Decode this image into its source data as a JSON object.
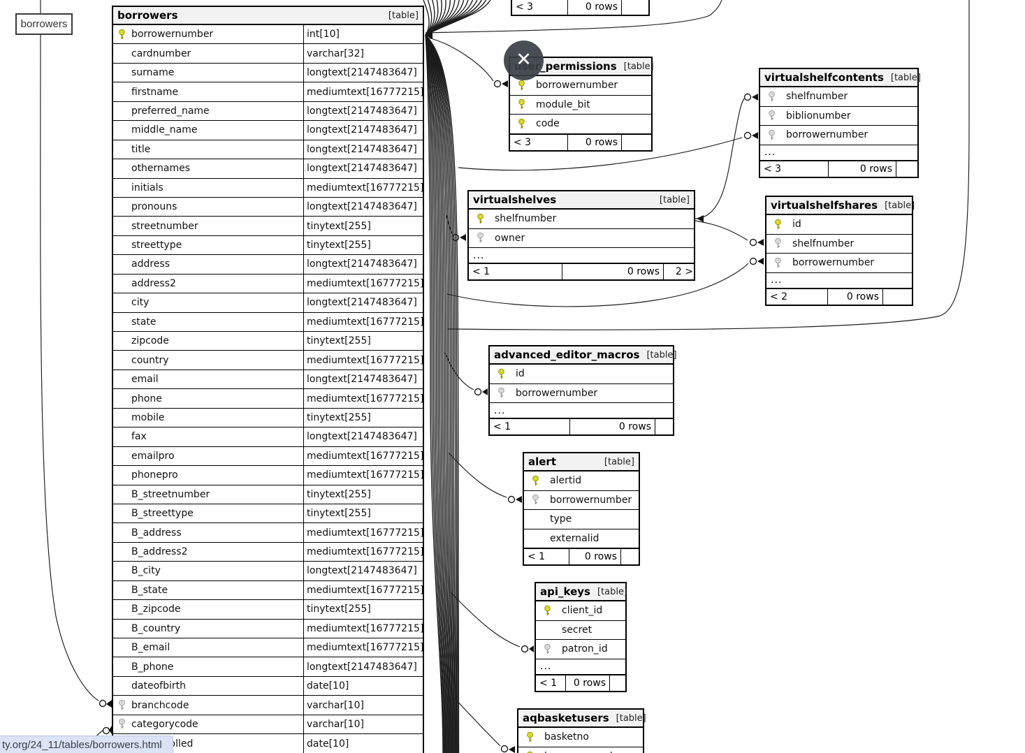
{
  "page": {
    "tooltip_label": "borrowers",
    "status_bar_url": "ty.org/24_11/tables/borrowers.html",
    "close_button_glyph": "✕",
    "table_tag": "[table]",
    "accent_colors": {
      "pk_key": "#e3e313",
      "fk_key": "#e2e2e2",
      "header_bg": "#f2f2f2",
      "status_bg": "#dbe3f6"
    }
  },
  "tables": {
    "partial_top": {
      "footer": [
        "< 3",
        "0 rows",
        ""
      ]
    },
    "borrowers": {
      "name": "borrowers",
      "tag": "[table]",
      "columns": [
        {
          "name": "borrowernumber",
          "type": "int[10]",
          "key": "pk"
        },
        {
          "name": "cardnumber",
          "type": "varchar[32]"
        },
        {
          "name": "surname",
          "type": "longtext[2147483647]"
        },
        {
          "name": "firstname",
          "type": "mediumtext[16777215]"
        },
        {
          "name": "preferred_name",
          "type": "longtext[2147483647]"
        },
        {
          "name": "middle_name",
          "type": "longtext[2147483647]"
        },
        {
          "name": "title",
          "type": "longtext[2147483647]"
        },
        {
          "name": "othernames",
          "type": "longtext[2147483647]"
        },
        {
          "name": "initials",
          "type": "mediumtext[16777215]"
        },
        {
          "name": "pronouns",
          "type": "longtext[2147483647]"
        },
        {
          "name": "streetnumber",
          "type": "tinytext[255]"
        },
        {
          "name": "streettype",
          "type": "tinytext[255]"
        },
        {
          "name": "address",
          "type": "longtext[2147483647]"
        },
        {
          "name": "address2",
          "type": "mediumtext[16777215]"
        },
        {
          "name": "city",
          "type": "longtext[2147483647]"
        },
        {
          "name": "state",
          "type": "mediumtext[16777215]"
        },
        {
          "name": "zipcode",
          "type": "tinytext[255]"
        },
        {
          "name": "country",
          "type": "mediumtext[16777215]"
        },
        {
          "name": "email",
          "type": "longtext[2147483647]"
        },
        {
          "name": "phone",
          "type": "mediumtext[16777215]"
        },
        {
          "name": "mobile",
          "type": "tinytext[255]"
        },
        {
          "name": "fax",
          "type": "longtext[2147483647]"
        },
        {
          "name": "emailpro",
          "type": "mediumtext[16777215]"
        },
        {
          "name": "phonepro",
          "type": "mediumtext[16777215]"
        },
        {
          "name": "B_streetnumber",
          "type": "tinytext[255]"
        },
        {
          "name": "B_streettype",
          "type": "tinytext[255]"
        },
        {
          "name": "B_address",
          "type": "mediumtext[16777215]"
        },
        {
          "name": "B_address2",
          "type": "mediumtext[16777215]"
        },
        {
          "name": "B_city",
          "type": "longtext[2147483647]"
        },
        {
          "name": "B_state",
          "type": "mediumtext[16777215]"
        },
        {
          "name": "B_zipcode",
          "type": "tinytext[255]"
        },
        {
          "name": "B_country",
          "type": "mediumtext[16777215]"
        },
        {
          "name": "B_email",
          "type": "mediumtext[16777215]"
        },
        {
          "name": "B_phone",
          "type": "longtext[2147483647]"
        },
        {
          "name": "dateofbirth",
          "type": "date[10]"
        },
        {
          "name": "branchcode",
          "type": "varchar[10]",
          "key": "fk"
        },
        {
          "name": "categorycode",
          "type": "varchar[10]",
          "key": "fk"
        },
        {
          "name": "dateenrolled",
          "type": "date[10]"
        }
      ]
    },
    "user_permissions": {
      "name": "user_permissions",
      "tag": "[table]",
      "columns": [
        {
          "name": "borrowernumber",
          "key": "pk"
        },
        {
          "name": "module_bit",
          "key": "pk"
        },
        {
          "name": "code",
          "key": "pk"
        }
      ],
      "footer": [
        "< 3",
        "0 rows",
        ""
      ]
    },
    "virtualshelfcontents": {
      "name": "virtualshelfcontents",
      "tag": "[table]",
      "columns": [
        {
          "name": "shelfnumber",
          "key": "fk"
        },
        {
          "name": "biblionumber",
          "key": "fk"
        },
        {
          "name": "borrowernumber",
          "key": "fk"
        }
      ],
      "ellipsis": "...",
      "footer": [
        "< 3",
        "0 rows",
        ""
      ]
    },
    "virtualshelves": {
      "name": "virtualshelves",
      "tag": "[table]",
      "columns": [
        {
          "name": "shelfnumber",
          "key": "pk"
        },
        {
          "name": "owner",
          "key": "fk"
        }
      ],
      "ellipsis": "...",
      "footer": [
        "< 1",
        "0 rows",
        "2 >"
      ]
    },
    "virtualshelfshares": {
      "name": "virtualshelfshares",
      "tag": "[table]",
      "columns": [
        {
          "name": "id",
          "key": "pk"
        },
        {
          "name": "shelfnumber",
          "key": "fk"
        },
        {
          "name": "borrowernumber",
          "key": "fk"
        }
      ],
      "ellipsis": "...",
      "footer": [
        "< 2",
        "0 rows",
        ""
      ]
    },
    "advanced_editor_macros": {
      "name": "advanced_editor_macros",
      "tag": "[table]",
      "columns": [
        {
          "name": "id",
          "key": "pk"
        },
        {
          "name": "borrowernumber",
          "key": "fk"
        }
      ],
      "ellipsis": "...",
      "footer": [
        "< 1",
        "0 rows",
        ""
      ]
    },
    "alert": {
      "name": "alert",
      "tag": "[table]",
      "columns": [
        {
          "name": "alertid",
          "key": "pk"
        },
        {
          "name": "borrowernumber",
          "key": "fk"
        },
        {
          "name": "type"
        },
        {
          "name": "externalid"
        }
      ],
      "footer": [
        "< 1",
        "0 rows",
        ""
      ]
    },
    "api_keys": {
      "name": "api_keys",
      "tag": "[table]",
      "columns": [
        {
          "name": "client_id",
          "key": "pk"
        },
        {
          "name": "secret"
        },
        {
          "name": "patron_id",
          "key": "fk"
        }
      ],
      "ellipsis": "...",
      "footer": [
        "< 1",
        "0 rows",
        ""
      ]
    },
    "aqbasketusers": {
      "name": "aqbasketusers",
      "tag": "[table]",
      "columns": [
        {
          "name": "basketno",
          "key": "pk"
        },
        {
          "name": "borrowernumber",
          "key": "pk"
        }
      ]
    }
  }
}
